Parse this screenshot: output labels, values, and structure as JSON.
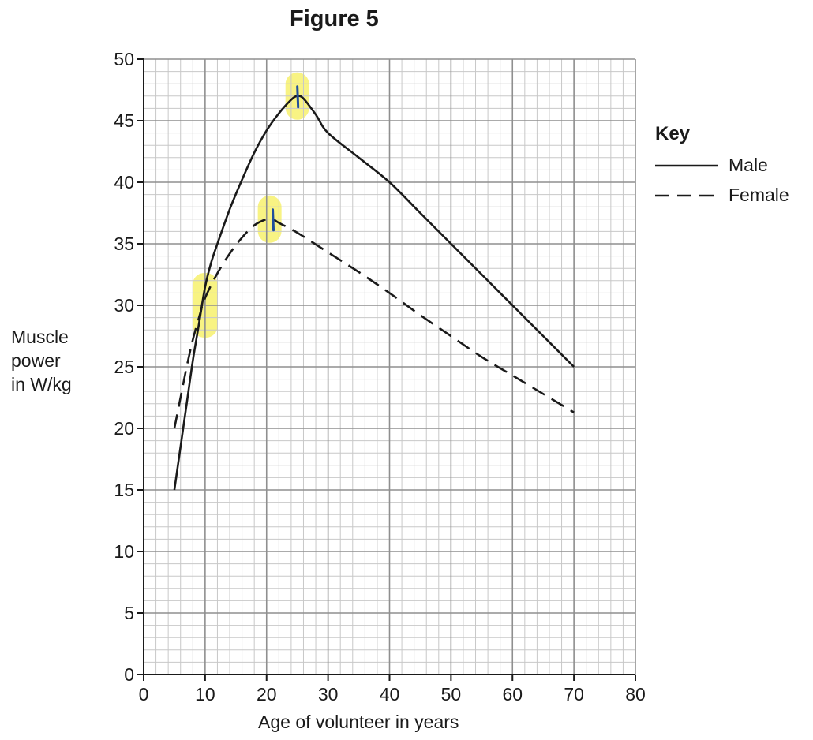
{
  "chart_data": {
    "type": "line",
    "title": "Figure 5",
    "xlabel": "Age of volunteer in years",
    "ylabel_lines": [
      "Muscle",
      "power",
      "in W/kg"
    ],
    "xlim": [
      0,
      80
    ],
    "ylim": [
      0,
      50
    ],
    "x_ticks": [
      0,
      10,
      20,
      30,
      40,
      50,
      60,
      70,
      80
    ],
    "y_ticks": [
      0,
      5,
      10,
      15,
      20,
      25,
      30,
      35,
      40,
      45,
      50
    ],
    "grid": true,
    "legend": {
      "title": "Key",
      "position": "right",
      "entries": [
        "Male",
        "Female"
      ]
    },
    "series": [
      {
        "name": "Male",
        "style": "solid",
        "x": [
          5,
          6,
          7,
          8,
          9,
          10,
          11,
          12,
          14,
          16,
          18,
          20,
          22,
          24,
          25,
          26,
          28,
          30,
          35,
          40,
          45,
          50,
          55,
          60,
          65,
          70
        ],
        "y": [
          15,
          18.5,
          22,
          25.5,
          28.5,
          31.5,
          33.5,
          35,
          37.8,
          40.2,
          42.4,
          44.2,
          45.6,
          46.7,
          47,
          46.8,
          45.5,
          44,
          42,
          40,
          37.5,
          35,
          32.5,
          30,
          27.5,
          25
        ]
      },
      {
        "name": "Female",
        "style": "dashed",
        "x": [
          5,
          6,
          7,
          8,
          9,
          10,
          12,
          14,
          16,
          18,
          20,
          21,
          22,
          25,
          30,
          35,
          40,
          45,
          50,
          55,
          60,
          65,
          70
        ],
        "y": [
          20,
          22.5,
          25,
          27.2,
          29,
          30.6,
          32.6,
          34.2,
          35.5,
          36.5,
          37,
          37,
          36.7,
          35.9,
          34.3,
          32.7,
          31,
          29.2,
          27.5,
          25.8,
          24.3,
          22.8,
          21.3
        ]
      }
    ],
    "annotations": [
      {
        "type": "marker",
        "series": "Male",
        "x": 25,
        "y": 47
      },
      {
        "type": "marker",
        "series": "Female",
        "x": 21,
        "y": 37
      },
      {
        "type": "highlight",
        "x": 25,
        "y": 47
      },
      {
        "type": "highlight",
        "x": 20.5,
        "y": 37
      },
      {
        "type": "highlight",
        "x": 10,
        "y": 30
      }
    ],
    "colors": {
      "line": "#1a1a1a",
      "minor_grid": "#c8c8c8",
      "major_grid": "#8f8f8f",
      "highlight": "#f5ef5a",
      "marker": "#1f4e9c"
    }
  }
}
